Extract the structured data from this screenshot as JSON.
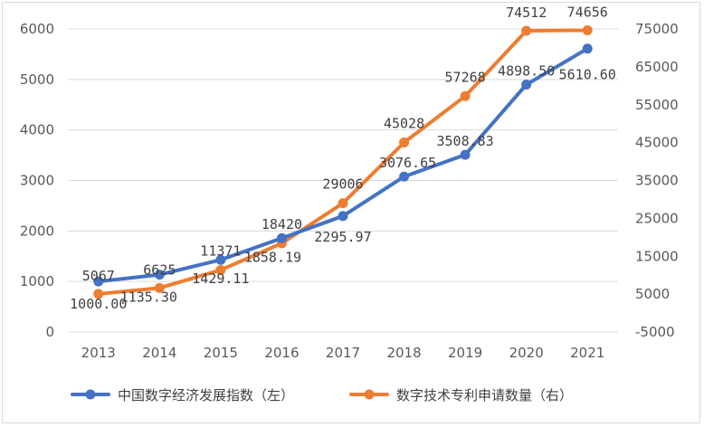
{
  "chart_data": {
    "type": "line",
    "x": [
      "2013",
      "2014",
      "2015",
      "2016",
      "2017",
      "2018",
      "2019",
      "2020",
      "2021"
    ],
    "series": [
      {
        "name": "中国数字经济发展指数（左）",
        "axis": "left",
        "color": "#4472c4",
        "values": [
          1000.0,
          1135.3,
          1429.11,
          1858.19,
          2295.97,
          3076.65,
          3508.83,
          4898.5,
          5610.6
        ],
        "labels": [
          "1000.00",
          "1135.30",
          "1429.11",
          "1858.19",
          "2295.97",
          "3076.65",
          "3508.83",
          "4898.50",
          "5610.60"
        ]
      },
      {
        "name": "数字技术专利申请数量（右）",
        "axis": "right",
        "color": "#ed7d31",
        "values": [
          5067,
          6625,
          11371,
          18420,
          29006,
          45028,
          57268,
          74512,
          74656
        ],
        "labels": [
          "5067",
          "6625",
          "11371",
          "18420",
          "29006",
          "45028",
          "57268",
          "74512",
          "74656"
        ]
      }
    ],
    "y_left": {
      "lim": [
        0,
        6000
      ],
      "ticks": [
        "0",
        "1000",
        "2000",
        "3000",
        "4000",
        "5000",
        "6000"
      ]
    },
    "y_right": {
      "lim": [
        -5000,
        75000
      ],
      "ticks": [
        "-5000",
        "5000",
        "15000",
        "25000",
        "35000",
        "45000",
        "55000",
        "65000",
        "75000"
      ]
    },
    "grid": "horizontal",
    "legend": "bottom",
    "title": "",
    "xlabel": "",
    "ylabel": ""
  }
}
